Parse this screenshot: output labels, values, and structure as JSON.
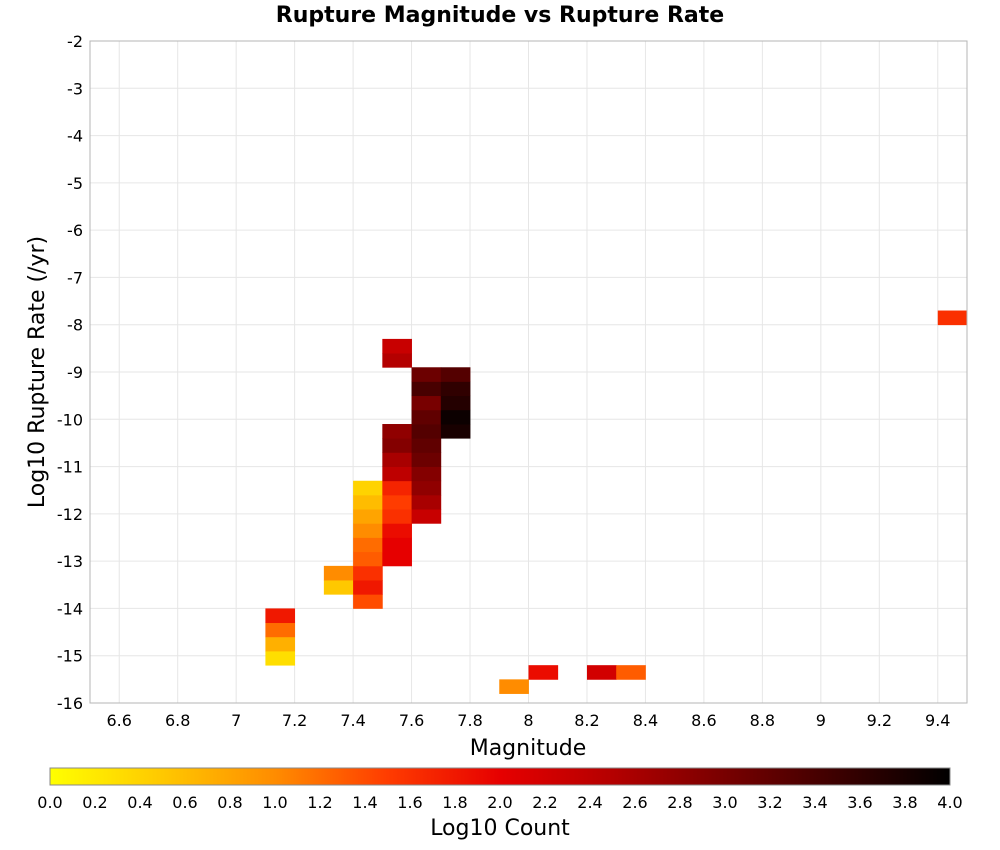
{
  "chart_data": {
    "type": "heatmap",
    "title": "Rupture Magnitude vs Rupture Rate",
    "xlabel": "Magnitude",
    "ylabel": "Log10 Rupture Rate (/yr)",
    "xlim": [
      6.5,
      9.5
    ],
    "ylim": [
      -16,
      -2
    ],
    "x_ticks": [
      "6.6",
      "6.8",
      "7",
      "7.2",
      "7.4",
      "7.6",
      "7.8",
      "8",
      "8.2",
      "8.4",
      "8.6",
      "8.8",
      "9",
      "9.2",
      "9.4"
    ],
    "y_ticks": [
      "-2",
      "-3",
      "-4",
      "-5",
      "-6",
      "-7",
      "-8",
      "-9",
      "-10",
      "-11",
      "-12",
      "-13",
      "-14",
      "-15",
      "-16"
    ],
    "grid": true,
    "bin_size": {
      "x": 0.1,
      "y": 0.3
    },
    "x_bin_start": 6.5,
    "y_bin_start": -16.1,
    "cells": [
      [
        14,
        1,
        1.0
      ],
      [
        15,
        2,
        1.9
      ],
      [
        17,
        2,
        2.2
      ],
      [
        18,
        2,
        1.3
      ],
      [
        6,
        3,
        0.3
      ],
      [
        6,
        4,
        0.7
      ],
      [
        6,
        5,
        1.2
      ],
      [
        6,
        6,
        1.8
      ],
      [
        9,
        7,
        1.4
      ],
      [
        8,
        8,
        0.5
      ],
      [
        9,
        8,
        1.8
      ],
      [
        8,
        9,
        1.0
      ],
      [
        9,
        9,
        1.6
      ],
      [
        9,
        10,
        1.3
      ],
      [
        10,
        10,
        2.0
      ],
      [
        9,
        11,
        1.2
      ],
      [
        10,
        11,
        2.0
      ],
      [
        9,
        12,
        1.0
      ],
      [
        10,
        12,
        1.9
      ],
      [
        9,
        13,
        0.8
      ],
      [
        10,
        13,
        1.6
      ],
      [
        11,
        13,
        2.3
      ],
      [
        9,
        14,
        0.6
      ],
      [
        10,
        14,
        1.5
      ],
      [
        11,
        14,
        2.6
      ],
      [
        9,
        15,
        0.4
      ],
      [
        10,
        15,
        1.7
      ],
      [
        11,
        15,
        2.8
      ],
      [
        10,
        16,
        2.4
      ],
      [
        11,
        16,
        2.9
      ],
      [
        10,
        17,
        2.6
      ],
      [
        11,
        17,
        3.1
      ],
      [
        10,
        18,
        2.9
      ],
      [
        11,
        18,
        3.2
      ],
      [
        10,
        19,
        2.8
      ],
      [
        11,
        19,
        3.3
      ],
      [
        12,
        19,
        3.8
      ],
      [
        11,
        20,
        3.2
      ],
      [
        12,
        20,
        3.9
      ],
      [
        11,
        21,
        3.0
      ],
      [
        12,
        21,
        3.7
      ],
      [
        11,
        22,
        3.4
      ],
      [
        12,
        22,
        3.6
      ],
      [
        11,
        23,
        3.1
      ],
      [
        12,
        23,
        3.3
      ],
      [
        10,
        24,
        2.5
      ],
      [
        10,
        25,
        2.3
      ],
      [
        29,
        27,
        1.6
      ]
    ],
    "colorbar": {
      "label": "Log10 Count",
      "min": 0.0,
      "max": 4.0,
      "ticks": [
        "0.0",
        "0.2",
        "0.4",
        "0.6",
        "0.8",
        "1.0",
        "1.2",
        "1.4",
        "1.6",
        "1.8",
        "2.0",
        "2.2",
        "2.4",
        "2.6",
        "2.8",
        "3.0",
        "3.2",
        "3.4",
        "3.6",
        "3.8",
        "4.0"
      ],
      "colors": [
        "#ffff00",
        "#ffc800",
        "#ff8c00",
        "#ff3c00",
        "#e60000",
        "#b40000",
        "#780000",
        "#3c0000",
        "#000000"
      ]
    }
  }
}
